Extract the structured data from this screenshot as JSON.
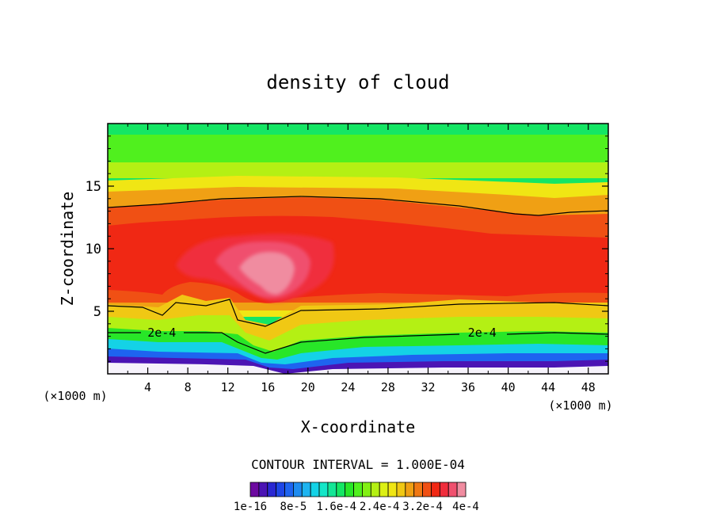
{
  "chart_data": {
    "type": "heatmap",
    "title": "density of cloud",
    "xlabel": "X-coordinate",
    "ylabel": "Z-coordinate",
    "x_unit_left": "(×1000 m)",
    "x_unit_right": "(×1000 m)",
    "xlim": [
      0,
      50
    ],
    "ylim": [
      0,
      20
    ],
    "xticks": [
      4,
      8,
      12,
      16,
      20,
      24,
      28,
      32,
      36,
      40,
      44,
      48
    ],
    "yticks": [
      5,
      10,
      15
    ],
    "contour_interval_text": "CONTOUR INTERVAL = 1.000E-04",
    "contour_labels": [
      {
        "text": "2e-4",
        "x": 5.4,
        "z": 3.3
      },
      {
        "text": "2e-4",
        "x": 37.4,
        "z": 3.3
      }
    ],
    "colorbar": {
      "colors": [
        "#6d0aa0",
        "#4b14b4",
        "#2a28d2",
        "#1e46e6",
        "#1e64f0",
        "#1e8cf0",
        "#1eb4f0",
        "#14d2e6",
        "#14e6c8",
        "#14e696",
        "#14e664",
        "#28e628",
        "#50f01e",
        "#82f014",
        "#b4f014",
        "#dcf014",
        "#f0e614",
        "#f0c814",
        "#f0a014",
        "#f07814",
        "#f05014",
        "#f02814",
        "#f02d3c",
        "#f0506e",
        "#f08ca0"
      ],
      "tick_labels": [
        "1e-16",
        "8e-5",
        "1.6e-4",
        "2.4e-4",
        "3.2e-4",
        "4e-4"
      ]
    },
    "grid": false
  }
}
